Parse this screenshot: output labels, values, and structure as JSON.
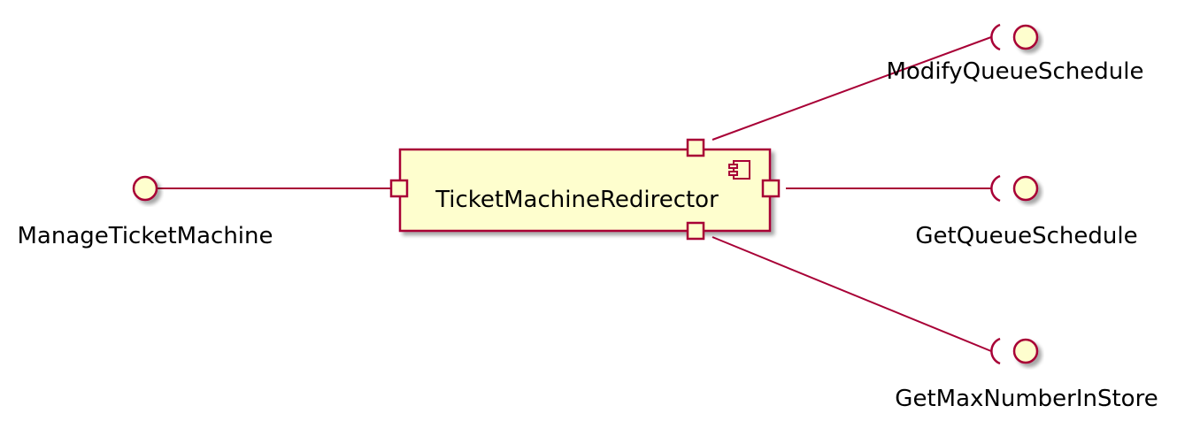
{
  "component": {
    "name": "TicketMachineRedirector",
    "icon": "component-icon"
  },
  "interfaces": {
    "provided": "ManageTicketMachine",
    "required": [
      "ModifyQueueSchedule",
      "GetQueueSchedule",
      "GetMaxNumberInStore"
    ]
  },
  "colors": {
    "fill": "#FEFECE",
    "stroke": "#A80036",
    "shadow": "#C8C8C8",
    "text": "#000000"
  }
}
